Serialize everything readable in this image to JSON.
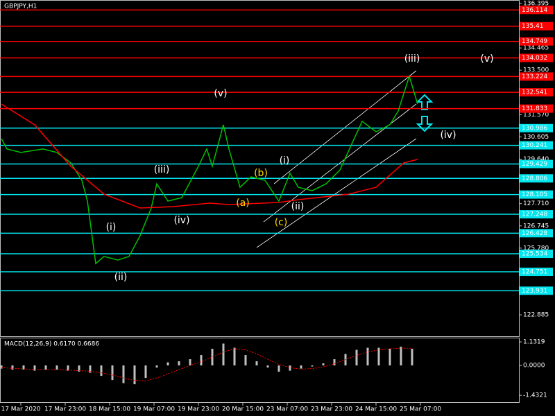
{
  "chart_data": [
    {
      "type": "line",
      "title": "GBPJPY,H1",
      "xlim": [
        -0.5,
        186.5
      ],
      "xticks": [
        {
          "value": 7,
          "label": "17 Mar 2020"
        },
        {
          "value": 23,
          "label": "17 Mar 23:00"
        },
        {
          "value": 39,
          "label": "18 Mar 15:00"
        },
        {
          "value": 55,
          "label": "19 Mar 07:00"
        },
        {
          "value": 71,
          "label": "19 Mar 23:00"
        },
        {
          "value": 87,
          "label": "20 Mar 15:00"
        },
        {
          "value": 103,
          "label": "23 Mar 07:00"
        },
        {
          "value": 119,
          "label": "23 Mar 23:00"
        },
        {
          "value": 135,
          "label": "24 Mar 15:00"
        },
        {
          "value": 151,
          "label": "25 Mar 07:00"
        }
      ],
      "ylim": [
        121.955,
        136.395
      ],
      "yticks": [
        136.395,
        134.465,
        {
          "value": 133.5,
          "label": "133.500"
        },
        {
          "value": 131.57,
          "label": "131.570"
        },
        130.605,
        {
          "value": 129.64,
          "label": "129.640"
        },
        {
          "value": 127.71,
          "label": "127.710"
        },
        126.745,
        {
          "value": 125.78,
          "label": "125.780"
        },
        122.885
      ],
      "series": [
        {
          "color": "#00c000",
          "x": [
            0,
            2,
            7,
            15,
            20,
            25,
            29,
            31,
            34,
            37,
            42,
            46,
            50,
            54,
            56,
            60,
            65,
            71,
            74,
            76,
            80,
            82,
            86,
            90,
            95,
            100,
            104,
            107,
            112,
            117,
            122,
            126,
            130,
            135,
            140,
            143,
            147,
            150
          ],
          "values": [
            130.53,
            130.08,
            129.93,
            130.08,
            129.93,
            129.48,
            128.72,
            127.82,
            125.11,
            125.42,
            125.26,
            125.42,
            126.32,
            127.52,
            128.57,
            127.82,
            127.97,
            129.33,
            130.08,
            129.33,
            131.13,
            130.08,
            128.42,
            128.87,
            128.72,
            127.82,
            129.03,
            128.42,
            128.27,
            128.57,
            129.17,
            130.23,
            131.28,
            130.83,
            131.13,
            131.73,
            133.24,
            132.03
          ]
        },
        {
          "color": "#ff0000",
          "x": [
            0,
            12,
            25,
            37,
            50,
            62,
            75,
            82,
            100,
            107,
            125,
            135,
            145,
            150
          ],
          "values": [
            132.03,
            131.13,
            129.33,
            128.12,
            127.52,
            127.58,
            127.73,
            127.67,
            127.76,
            127.88,
            128.12,
            128.42,
            129.48,
            129.63
          ]
        }
      ],
      "levels": [
        {
          "value": 136.114,
          "color": "#ff0000"
        },
        {
          "value": 135.41,
          "color": "#ff0000"
        },
        {
          "value": 134.749,
          "color": "#ff0000"
        },
        {
          "value": 134.032,
          "color": "#ff0000"
        },
        {
          "value": 133.224,
          "color": "#ff0000"
        },
        {
          "value": 132.541,
          "color": "#ff0000"
        },
        {
          "value": 131.833,
          "color": "#ff0000"
        },
        {
          "value": 130.986,
          "color": "#00e5ee"
        },
        {
          "value": 130.241,
          "color": "#00e5ee"
        },
        {
          "value": 129.429,
          "color": "#00e5ee"
        },
        {
          "value": 128.806,
          "color": "#00e5ee"
        },
        {
          "value": 128.105,
          "color": "#00e5ee"
        },
        {
          "value": 127.248,
          "color": "#00e5ee"
        },
        {
          "value": 126.428,
          "color": "#00e5ee"
        },
        {
          "value": 125.534,
          "color": "#00e5ee"
        },
        {
          "value": 124.751,
          "color": "#00e5ee"
        },
        {
          "value": 123.931,
          "color": "#00e5ee"
        }
      ],
      "annotations": [
        {
          "text": "(v)",
          "color": "#ffffff"
        },
        {
          "text": "(iii)",
          "color": "#ffffff"
        },
        {
          "text": "(v)",
          "color": "#ffffff"
        },
        {
          "text": "(iv)",
          "color": "#ffffff"
        },
        {
          "text": "(iii)",
          "color": "#ffffff"
        },
        {
          "text": "(iv)",
          "color": "#ffffff"
        },
        {
          "text": "(i)",
          "color": "#ffffff"
        },
        {
          "text": "(ii)",
          "color": "#ffffff"
        },
        {
          "text": "(i)",
          "color": "#ffffff"
        },
        {
          "text": "(ii)",
          "color": "#ffffff"
        },
        {
          "text": "(a)",
          "color": "#ffd700"
        },
        {
          "text": "(b)",
          "color": "#ffd700"
        },
        {
          "text": "(c)",
          "color": "#ffd700"
        }
      ]
    },
    {
      "type": "bar",
      "title": "MACD(12,26,9) 0.6170 0.6686",
      "ylim": [
        -1.76,
        1.3
      ],
      "yticks": [
        1.1319,
        {
          "value": 0,
          "label": "0.0000"
        },
        -1.4321
      ],
      "x": [
        0,
        4,
        8,
        12,
        16,
        20,
        24,
        28,
        32,
        36,
        40,
        44,
        48,
        52,
        56,
        60,
        64,
        68,
        72,
        76,
        80,
        84,
        88,
        92,
        96,
        100,
        104,
        108,
        112,
        116,
        120,
        124,
        128,
        132,
        136,
        140,
        144,
        148
      ],
      "series": [
        {
          "color": "#c0c0c0",
          "values": [
            -0.15,
            -0.2,
            -0.2,
            -0.25,
            -0.2,
            -0.2,
            -0.25,
            -0.3,
            -0.35,
            -0.5,
            -0.7,
            -0.85,
            -0.9,
            -0.6,
            -0.1,
            0.15,
            0.2,
            0.3,
            0.5,
            0.8,
            1.05,
            0.85,
            0.5,
            0.2,
            -0.1,
            -0.3,
            -0.25,
            -0.15,
            -0.05,
            0.1,
            0.3,
            0.55,
            0.75,
            0.85,
            0.85,
            0.8,
            0.9,
            0.8
          ]
        },
        {
          "color": "#ff0000",
          "values": [
            -0.1,
            -0.14,
            -0.17,
            -0.2,
            -0.21,
            -0.21,
            -0.22,
            -0.25,
            -0.28,
            -0.35,
            -0.46,
            -0.6,
            -0.72,
            -0.74,
            -0.6,
            -0.4,
            -0.2,
            0.0,
            0.18,
            0.4,
            0.65,
            0.8,
            0.75,
            0.55,
            0.3,
            0.05,
            -0.1,
            -0.18,
            -0.15,
            -0.07,
            0.08,
            0.28,
            0.48,
            0.65,
            0.75,
            0.8,
            0.83,
            0.82
          ]
        }
      ]
    }
  ]
}
